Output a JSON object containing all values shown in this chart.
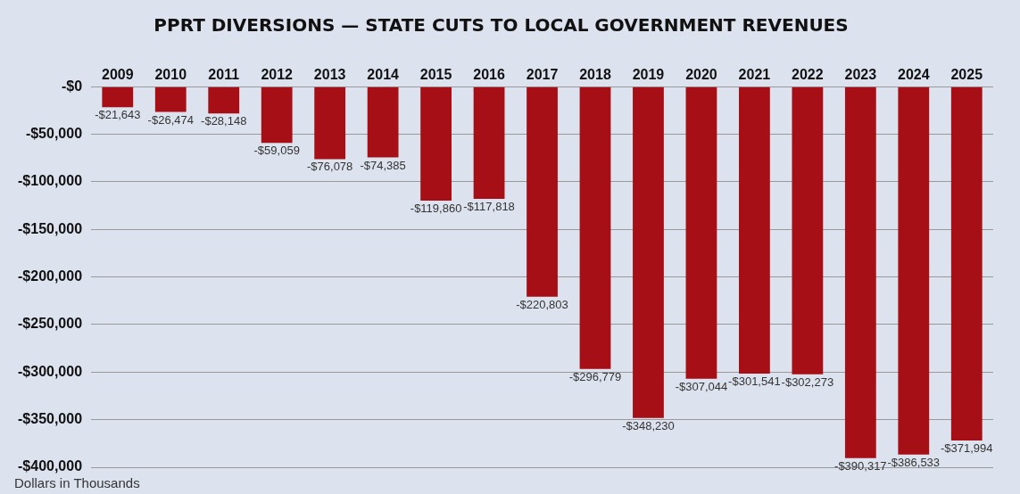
{
  "chart_data": {
    "type": "bar",
    "title": "PPRT DIVERSIONS — STATE CUTS TO LOCAL GOVERNMENT REVENUES",
    "categories": [
      "2009",
      "2010",
      "2011",
      "2012",
      "2013",
      "2014",
      "2015",
      "2016",
      "2017",
      "2018",
      "2019",
      "2020",
      "2021",
      "2022",
      "2023",
      "2024",
      "2025"
    ],
    "values": [
      -21643,
      -26474,
      -28148,
      -59059,
      -76078,
      -74385,
      -119860,
      -117818,
      -220803,
      -296779,
      -348230,
      -307044,
      -301541,
      -302273,
      -390317,
      -386533,
      -371994
    ],
    "value_labels": [
      "-$21,643",
      "-$26,474",
      "-$28,148",
      "-$59,059",
      "-$76,078",
      "-$74,385",
      "-$119,860",
      "-$117,818",
      "-$220,803",
      "-$296,779",
      "-$348,230",
      "-$307,044",
      "-$301,541",
      "-$302,273",
      "-$390,317",
      "-$386,533",
      "-$371,994"
    ],
    "color": "#a50f15",
    "ylim": [
      -400000,
      0
    ],
    "yticks": [
      {
        "value": -400000,
        "label": "-$400,000"
      },
      {
        "value": -350000,
        "label": "-$350,000"
      },
      {
        "value": -300000,
        "label": "-$300,000"
      },
      {
        "value": -250000,
        "label": "-$250,000"
      },
      {
        "value": -200000,
        "label": "-$200,000"
      },
      {
        "value": -150000,
        "label": "-$150,000"
      },
      {
        "value": -100000,
        "label": "-$100,000"
      },
      {
        "value": -50000,
        "label": "-$50,000"
      },
      {
        "value": 0,
        "label": "-$0"
      }
    ],
    "grid": "y",
    "annotations": [
      "Dollars in Thousands"
    ]
  }
}
